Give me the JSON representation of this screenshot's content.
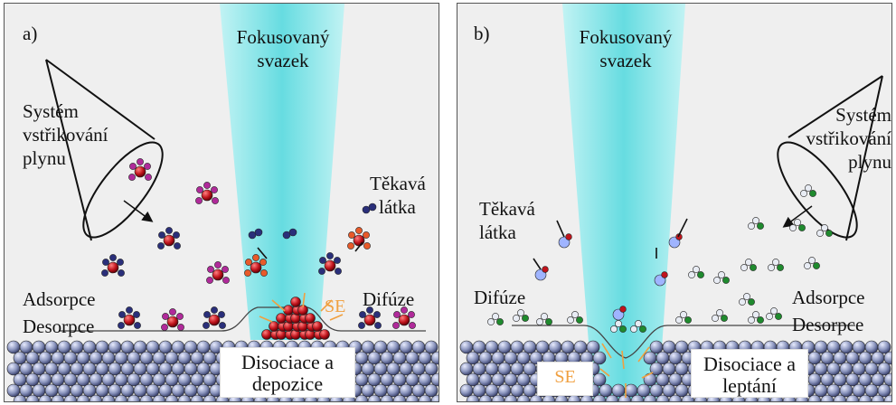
{
  "panel_a": {
    "label": "a)",
    "beam_line1": "Fokusovaný",
    "beam_line2": "svazek",
    "injector_line1": "Systém",
    "injector_line2": "vstřikování",
    "injector_line3": "plynu",
    "volatile_line1": "Těkavá",
    "volatile_line2": "látka",
    "adsorption": "Adsorpce",
    "desorption": "Desorpce",
    "diffusion": "Difúze",
    "se": "SE",
    "process_line1": "Disociace a",
    "process_line2": "depozice"
  },
  "panel_b": {
    "label": "b)",
    "beam_line1": "Fokusovaný",
    "beam_line2": "svazek",
    "injector_line1": "Systém",
    "injector_line2": "vstřikování",
    "injector_line3": "plynu",
    "volatile_line1": "Těkavá",
    "volatile_line2": "látka",
    "adsorption": "Adsorpce",
    "desorption": "Desorpce",
    "diffusion": "Difúze",
    "se": "SE",
    "process_line1": "Disociace a",
    "process_line2": "leptání"
  },
  "colors": {
    "beam": "#5fdbe0",
    "substrate": "#8a94bd",
    "precursor_center": "#c0141c",
    "precursor_ligand_magenta": "#b02a9a",
    "precursor_ligand_navy": "#2a2f7a",
    "etch_green": "#1f8a2e",
    "etch_white": "#e8ecf4",
    "se_arrow": "#f0a040"
  }
}
